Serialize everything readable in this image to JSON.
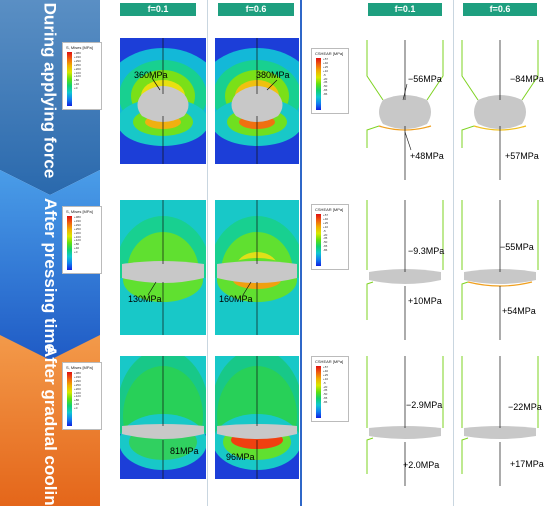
{
  "column_headers": {
    "left_f1": "f=0.1",
    "left_f2": "f=0.6",
    "right_f1": "f=0.1",
    "right_f2": "f=0.6"
  },
  "stages": [
    {
      "label": "During applying force"
    },
    {
      "label": "After pressing time"
    },
    {
      "label": "After gradual cooling"
    }
  ],
  "legends": {
    "mises_title": "S, Mises [MPa]",
    "shear_title": "CSHEAR [MPa]",
    "mises_ticks": [
      "+380",
      "+330",
      "+290",
      "+250",
      "+200",
      "+160",
      "+120",
      "+80",
      "+40",
      "+0"
    ],
    "shear_ticks": [
      "+57",
      "+40",
      "+25",
      "+10",
      "-5",
      "-20",
      "-35",
      "-50",
      "-65",
      "-86"
    ]
  },
  "mises_annotations": {
    "r1c1": "360MPa",
    "r1c2": "380MPa",
    "r2c1": "130MPa",
    "r2c2": "160MPa",
    "r3c1": "81MPa",
    "r3c2": "96MPa"
  },
  "shear_annotations": {
    "r1c1_top": "−56MPa",
    "r1c1_bot": "+48MPa",
    "r1c2_top": "−84MPa",
    "r1c2_bot": "+57MPa",
    "r2c1_top": "−9.3MPa",
    "r2c1_bot": "+10MPa",
    "r2c2_top": "−55MPa",
    "r2c2_bot": "+54MPa",
    "r3c1_top": "−2.9MPa",
    "r3c1_bot": "+2.0MPa",
    "r3c2_top": "−22MPa",
    "r3c2_bot": "+17MPa"
  },
  "colors": {
    "arrow_top": "#2d6fb0",
    "arrow_mid": "#1f5ec8",
    "arrow_bottom": "#e8701c",
    "header_green": "#1e9f7f",
    "contour_edge": "#7ed321",
    "specimen_gray": "#c8c8c8"
  }
}
